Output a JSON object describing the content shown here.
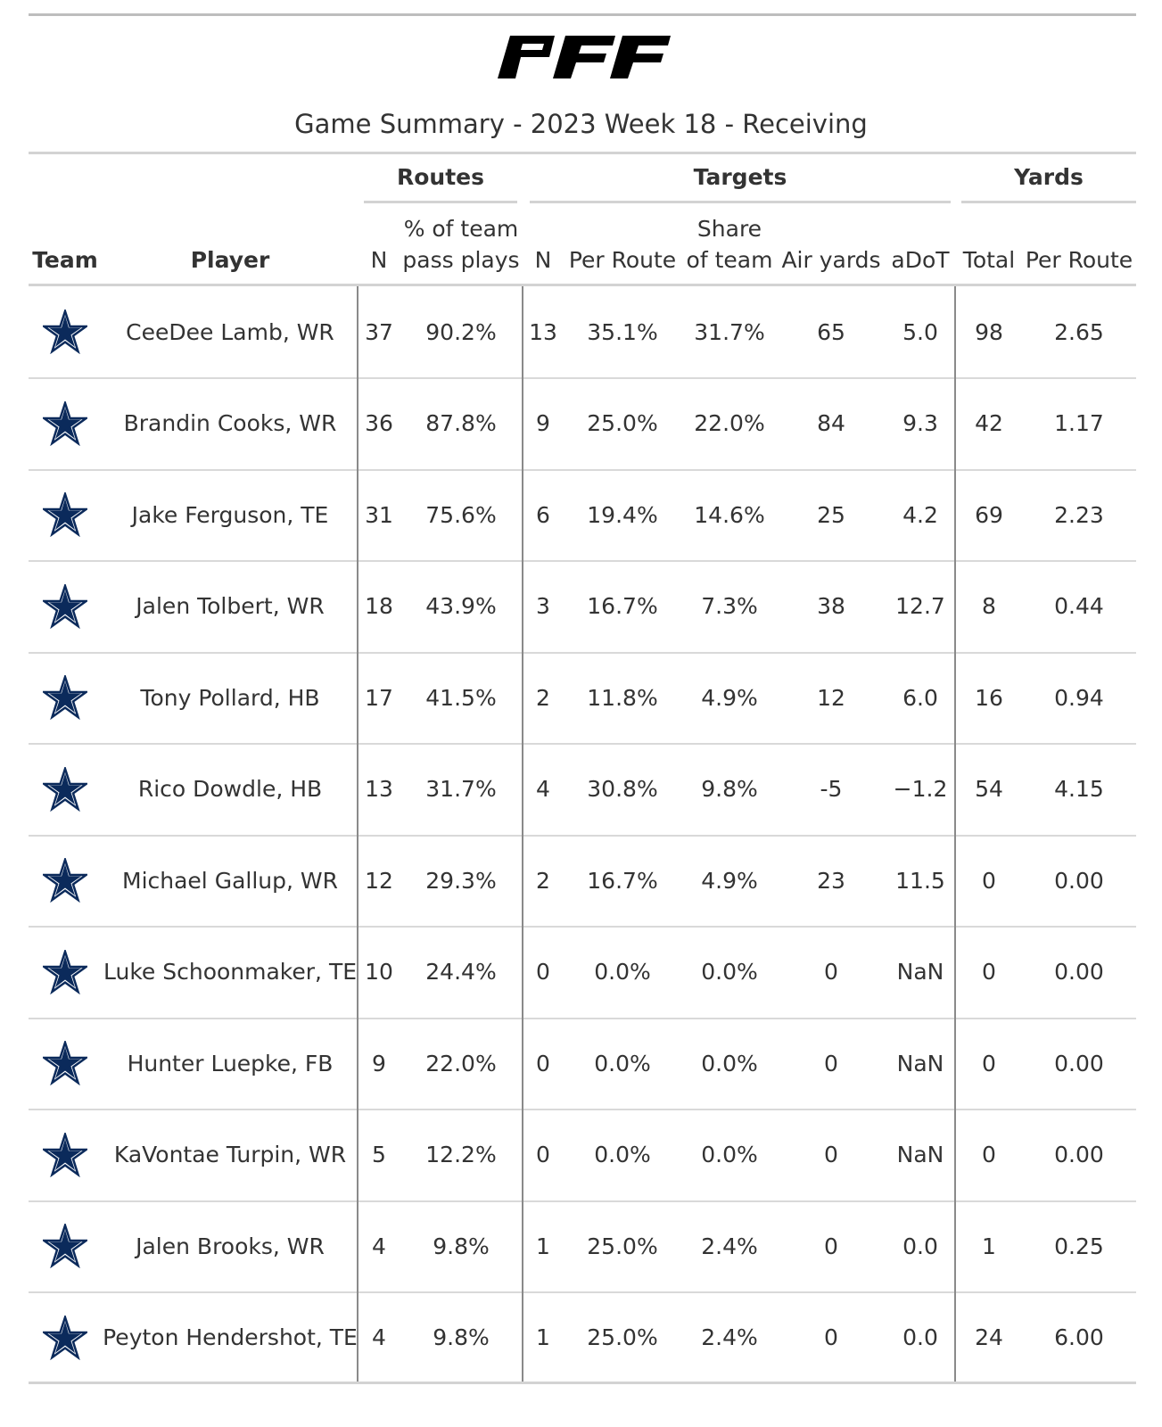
{
  "logo_text": "PFF",
  "title": "Game Summary - 2023 Week 18 - Receiving",
  "spanners": {
    "routes": "Routes",
    "targets": "Targets",
    "yards": "Yards"
  },
  "columns": {
    "team": "Team",
    "player": "Player",
    "routes_n": "N",
    "routes_pct_line1": "% of team",
    "routes_pct_line2": "pass plays",
    "targets_n": "N",
    "targets_per_route": "Per Route",
    "targets_share_line1": "Share",
    "targets_share_line2": "of team",
    "air_yards": "Air yards",
    "adot": "aDoT",
    "yards_total": "Total",
    "yards_per_route": "Per Route"
  },
  "team_icon": "dallas-cowboys-star-icon",
  "colors": {
    "star": "#0b2a5b",
    "text": "#333333",
    "rule": "#d3d3d3"
  },
  "rows": [
    {
      "player": "CeeDee Lamb, WR",
      "routes_n": "37",
      "routes_pct": "90.2%",
      "targets_n": "13",
      "targets_per_route": "35.1%",
      "share": "31.7%",
      "air_yards": "65",
      "adot": "5.0",
      "yards_total": "98",
      "yards_per_route": "2.65"
    },
    {
      "player": "Brandin Cooks, WR",
      "routes_n": "36",
      "routes_pct": "87.8%",
      "targets_n": "9",
      "targets_per_route": "25.0%",
      "share": "22.0%",
      "air_yards": "84",
      "adot": "9.3",
      "yards_total": "42",
      "yards_per_route": "1.17"
    },
    {
      "player": "Jake Ferguson, TE",
      "routes_n": "31",
      "routes_pct": "75.6%",
      "targets_n": "6",
      "targets_per_route": "19.4%",
      "share": "14.6%",
      "air_yards": "25",
      "adot": "4.2",
      "yards_total": "69",
      "yards_per_route": "2.23"
    },
    {
      "player": "Jalen Tolbert, WR",
      "routes_n": "18",
      "routes_pct": "43.9%",
      "targets_n": "3",
      "targets_per_route": "16.7%",
      "share": "7.3%",
      "air_yards": "38",
      "adot": "12.7",
      "yards_total": "8",
      "yards_per_route": "0.44"
    },
    {
      "player": "Tony Pollard, HB",
      "routes_n": "17",
      "routes_pct": "41.5%",
      "targets_n": "2",
      "targets_per_route": "11.8%",
      "share": "4.9%",
      "air_yards": "12",
      "adot": "6.0",
      "yards_total": "16",
      "yards_per_route": "0.94"
    },
    {
      "player": "Rico Dowdle, HB",
      "routes_n": "13",
      "routes_pct": "31.7%",
      "targets_n": "4",
      "targets_per_route": "30.8%",
      "share": "9.8%",
      "air_yards": "-5",
      "adot": "−1.2",
      "yards_total": "54",
      "yards_per_route": "4.15"
    },
    {
      "player": "Michael Gallup, WR",
      "routes_n": "12",
      "routes_pct": "29.3%",
      "targets_n": "2",
      "targets_per_route": "16.7%",
      "share": "4.9%",
      "air_yards": "23",
      "adot": "11.5",
      "yards_total": "0",
      "yards_per_route": "0.00"
    },
    {
      "player": "Luke Schoonmaker, TE",
      "routes_n": "10",
      "routes_pct": "24.4%",
      "targets_n": "0",
      "targets_per_route": "0.0%",
      "share": "0.0%",
      "air_yards": "0",
      "adot": "NaN",
      "yards_total": "0",
      "yards_per_route": "0.00"
    },
    {
      "player": "Hunter Luepke, FB",
      "routes_n": "9",
      "routes_pct": "22.0%",
      "targets_n": "0",
      "targets_per_route": "0.0%",
      "share": "0.0%",
      "air_yards": "0",
      "adot": "NaN",
      "yards_total": "0",
      "yards_per_route": "0.00"
    },
    {
      "player": "KaVontae Turpin, WR",
      "routes_n": "5",
      "routes_pct": "12.2%",
      "targets_n": "0",
      "targets_per_route": "0.0%",
      "share": "0.0%",
      "air_yards": "0",
      "adot": "NaN",
      "yards_total": "0",
      "yards_per_route": "0.00"
    },
    {
      "player": "Jalen Brooks, WR",
      "routes_n": "4",
      "routes_pct": "9.8%",
      "targets_n": "1",
      "targets_per_route": "25.0%",
      "share": "2.4%",
      "air_yards": "0",
      "adot": "0.0",
      "yards_total": "1",
      "yards_per_route": "0.25"
    },
    {
      "player": "Peyton Hendershot, TE",
      "routes_n": "4",
      "routes_pct": "9.8%",
      "targets_n": "1",
      "targets_per_route": "25.0%",
      "share": "2.4%",
      "air_yards": "0",
      "adot": "0.0",
      "yards_total": "24",
      "yards_per_route": "6.00"
    }
  ]
}
